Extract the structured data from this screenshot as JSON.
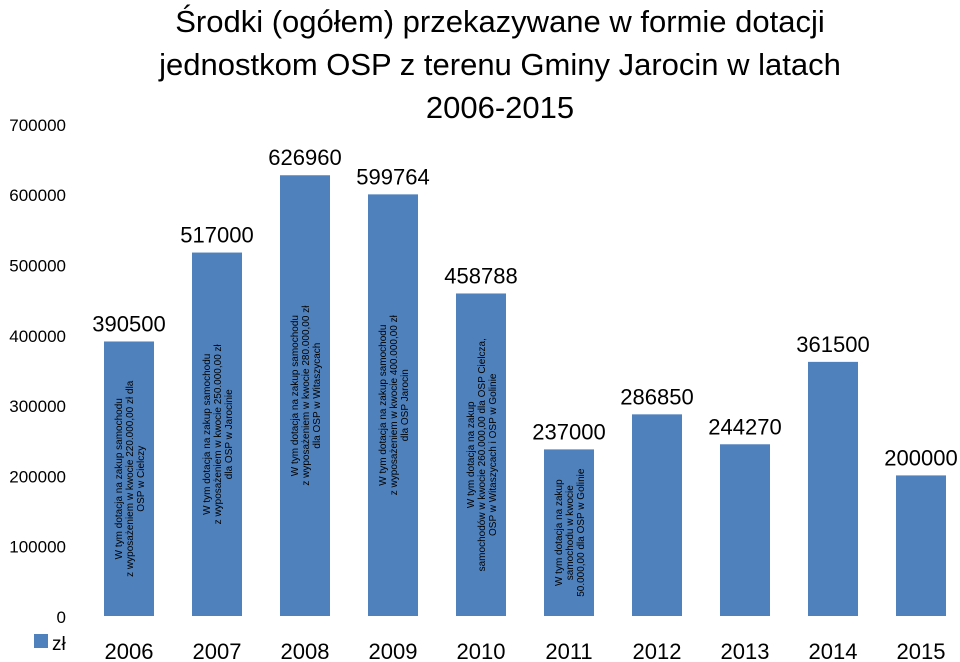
{
  "chart_data": {
    "type": "bar",
    "title_lines": [
      "Środki (ogółem) przekazywane w formie dotacji",
      "jednostkom OSP z terenu Gminy Jarocin w latach",
      "2006-2015"
    ],
    "categories": [
      "2006",
      "2007",
      "2008",
      "2009",
      "2010",
      "2011",
      "2012",
      "2013",
      "2014",
      "2015"
    ],
    "series": [
      {
        "name": "zł",
        "color": "#4f81bd",
        "values": [
          390500,
          517000,
          626960,
          599764,
          458788,
          237000,
          286850,
          244270,
          361500,
          200000
        ]
      }
    ],
    "data_labels": [
      "390500",
      "517000",
      "626960",
      "599764",
      "458788",
      "237000",
      "286850",
      "244270",
      "361500",
      "200000"
    ],
    "annotations": [
      {
        "category": "2006",
        "lines": [
          "W tym dotacja na zakup samochodu",
          "z wyposażeniem w kwocie 220.000,00 zł dla",
          "OSP w Cielczy"
        ]
      },
      {
        "category": "2007",
        "lines": [
          "W tym dotacja na zakup samochodu",
          "z wyposażeniem w kwocie 250.000,00  zł",
          "dla OSP w Jarocinie"
        ]
      },
      {
        "category": "2008",
        "lines": [
          "W tym dotacja na zakup samochodu",
          "z wyposażeniem w kwocie 280.000,00  zł",
          "dla OSP w Witaszycach"
        ]
      },
      {
        "category": "2009",
        "lines": [
          "W tym dotacja na zakup samochodu",
          "z wyposażeniem w kwocie 400.000,00 zł",
          "dla OSP Jarocin"
        ]
      },
      {
        "category": "2010",
        "lines": [
          "W tym dotacja na zakup",
          "samochodów w kwocie 260.000,00 dla OSP Cielcza,",
          "OSP w Witaszycach i OSP w Golinie"
        ]
      },
      {
        "category": "2011",
        "lines": [
          "W tym dotacja na zakup",
          "samochodu w kwocie",
          "50.000,00 dla OSP w Golinie"
        ]
      }
    ],
    "y_ticks": [
      "0",
      "100000",
      "200000",
      "300000",
      "400000",
      "500000",
      "600000",
      "700000"
    ],
    "ylim": [
      0,
      700000
    ],
    "legend": {
      "label": "zł",
      "placement": "bottom-left"
    },
    "grid": false,
    "colors": {
      "bar": "#4f81bd",
      "text": "#000000",
      "annotation": "#000000"
    }
  }
}
